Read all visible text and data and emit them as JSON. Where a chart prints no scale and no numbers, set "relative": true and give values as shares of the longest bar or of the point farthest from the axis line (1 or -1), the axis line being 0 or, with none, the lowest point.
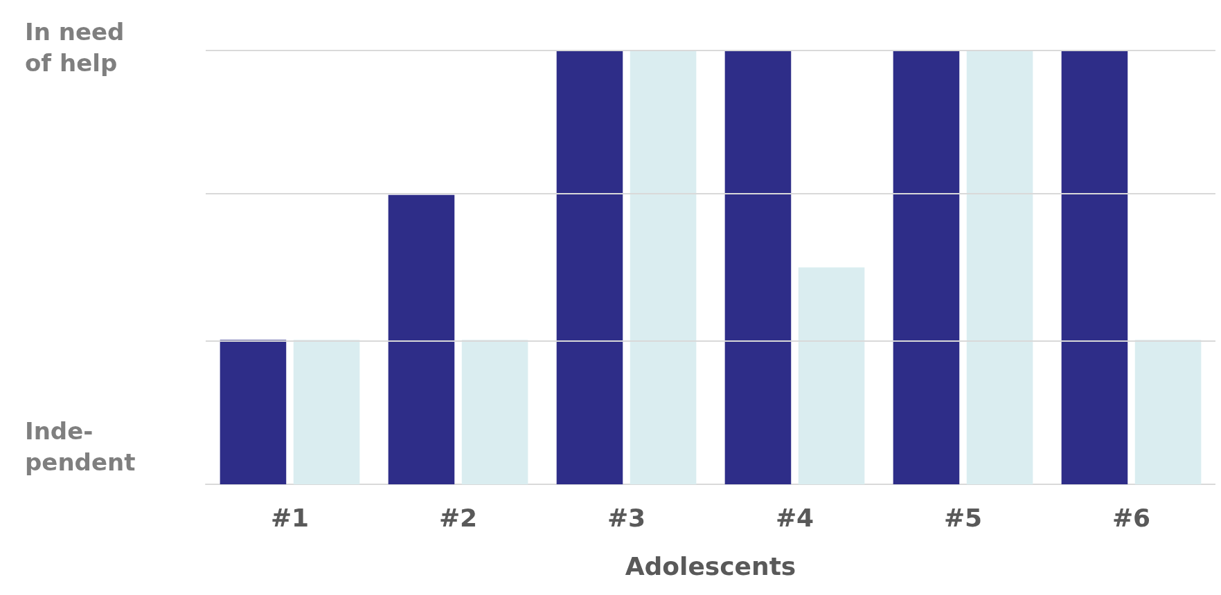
{
  "chart_data": {
    "type": "bar",
    "relative": true,
    "xlabel": "Adolescents",
    "categories": [
      "#1",
      "#2",
      "#3",
      "#4",
      "#5",
      "#6"
    ],
    "series": [
      {
        "color": "#2e2d88",
        "values": [
          0.333,
          0.667,
          1,
          1,
          1,
          1
        ]
      },
      {
        "color": "#daedf0",
        "values": [
          0.333,
          0.333,
          1,
          0.5,
          1,
          0.333
        ]
      }
    ],
    "annotations": [
      "In need\nof help",
      "Inde-\npendent"
    ],
    "ref_lines": [
      {
        "axis": "y",
        "value": 0.333,
        "color": "#d9d9d9"
      },
      {
        "axis": "y",
        "value": 0.667,
        "color": "#d9d9d9"
      },
      {
        "axis": "y",
        "value": 1,
        "color": "#d9d9d9"
      }
    ]
  }
}
